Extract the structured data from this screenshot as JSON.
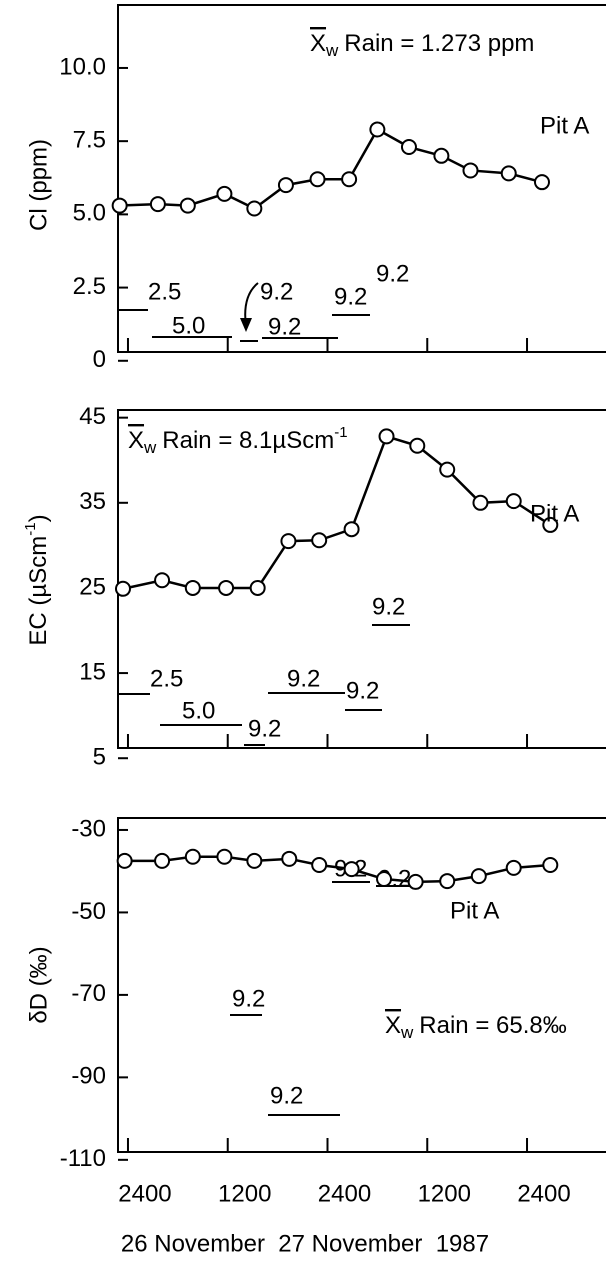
{
  "chart_data": [
    {
      "type": "line",
      "ylabel": "Cl (ppm)",
      "ylim": [
        0.3,
        12.15
      ],
      "yticks": [
        {
          "value": 10,
          "label": "10.0"
        },
        {
          "value": 7.5,
          "label": "7.5"
        },
        {
          "value": 5,
          "label": "5.0"
        },
        {
          "value": 2.5,
          "label": "2.5"
        },
        0
      ],
      "x": [
        -1,
        3.6,
        7.2,
        11.6,
        15.2,
        19,
        22.8,
        26.6,
        30,
        33.8,
        37.7,
        41.2,
        45.8,
        49.8
      ],
      "series": [
        {
          "name": "Pit A",
          "color": "#000000",
          "values": [
            5.3,
            5.35,
            5.3,
            5.7,
            5.2,
            6.0,
            6.2,
            6.2,
            7.9,
            7.3,
            7.0,
            6.5,
            6.4,
            6.1
          ]
        }
      ],
      "rain_mean": {
        "symbol": "X",
        "subscript": "w",
        "text": "Rain = 1.273 ppm"
      },
      "rain_labels": [
        "2.5",
        "5.0",
        "9.2",
        "9.2",
        "9.2",
        "9.2"
      ]
    },
    {
      "type": "line",
      "ylabel": {
        "text": "EC (µScm",
        "superscript": "-1",
        "suffix": ")"
      },
      "ylim": [
        6.2,
        45.9
      ],
      "yticks": [
        45,
        35,
        25,
        15,
        5
      ],
      "x": [
        -0.6,
        4.1,
        7.8,
        11.8,
        15.6,
        19.3,
        23.0,
        26.9,
        31.1,
        34.8,
        38.4,
        42.4,
        46.4,
        50.8
      ],
      "series": [
        {
          "name": "Pit A",
          "color": "#000000",
          "values": [
            24.9,
            25.9,
            25,
            25,
            25,
            30.5,
            30.6,
            31.9,
            42.8,
            41.7,
            38.9,
            35,
            35.2,
            32.4
          ]
        }
      ],
      "rain_mean": {
        "symbol": "X",
        "subscript": "w",
        "text": "Rain = 8.1µScm",
        "superscript": "-1"
      },
      "rain_labels": [
        "2.5",
        "5.0",
        "9.2",
        "9.2",
        "9.2",
        "9.2"
      ]
    },
    {
      "type": "line",
      "ylabel": "δD (‰)",
      "ylim": [
        -108.1,
        -27.1
      ],
      "yticks": [
        -30,
        -50,
        -70,
        -90,
        -110
      ],
      "xlim": [
        -1.2,
        57.5
      ],
      "xticks": [
        {
          "value": 0,
          "label": "2400"
        },
        {
          "value": 12,
          "label": "1200"
        },
        {
          "value": 24,
          "label": "2400"
        },
        {
          "value": 36,
          "label": "1200"
        },
        {
          "value": 48,
          "label": "2400"
        }
      ],
      "xlabel": "26 November  27 November  1987",
      "x": [
        -0.4,
        4.1,
        7.8,
        11.6,
        15.2,
        19.4,
        23.0,
        26.9,
        30.8,
        34.6,
        38.4,
        42.2,
        46.4,
        50.8
      ],
      "series": [
        {
          "name": "Pit A",
          "color": "#000000",
          "values": [
            -37.5,
            -37.5,
            -36.5,
            -36.5,
            -37.5,
            -37.0,
            -38.5,
            -39.5,
            -41.9,
            -42.6,
            -42.4,
            -41.2,
            -39.2,
            -38.5
          ]
        }
      ],
      "rain_mean": {
        "symbol": "X",
        "subscript": "w",
        "text": "Rain = 65.8‰"
      },
      "rain_labels": [
        "9.2",
        "9.2",
        "9.2",
        "9.2"
      ]
    }
  ]
}
